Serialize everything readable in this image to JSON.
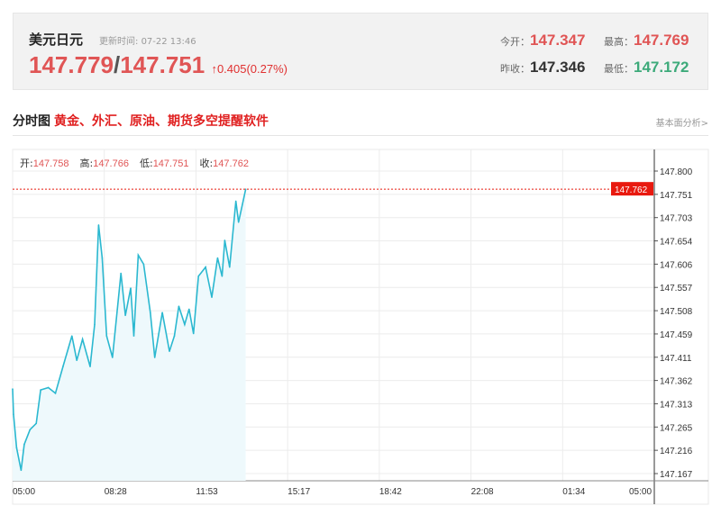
{
  "header": {
    "name": "美元日元",
    "update_label": "更新时间:",
    "update_time": "07-22 13:46",
    "ask": "147.779",
    "sep": "/",
    "bid": "147.751",
    "arrow": "↑",
    "change": "0.405(0.27%)",
    "open_label": "今开：",
    "open": "147.347",
    "high_label": "最高：",
    "high": "147.769",
    "prev_label": "昨收：",
    "prev": "147.346",
    "low_label": "最低：",
    "low": "147.172"
  },
  "section": {
    "title": "分时图",
    "promo": "黄金、外汇、原油、期货多空提醒软件",
    "more": "基本面分析>"
  },
  "ohlc": {
    "o_label": "开:",
    "o": "147.758",
    "h_label": "高:",
    "h": "147.766",
    "l_label": "低:",
    "l": "147.751",
    "c_label": "收:",
    "c": "147.762"
  },
  "colors": {
    "line": "#2bb8d0",
    "fill": "#eef9fc",
    "up": "#e05555",
    "down": "#3daa7a",
    "current": "#e8190f"
  },
  "chart_data": {
    "type": "area",
    "ylim": [
      147.167,
      147.8
    ],
    "yticks": [
      "147.800",
      "147.751",
      "147.703",
      "147.654",
      "147.606",
      "147.557",
      "147.508",
      "147.459",
      "147.411",
      "147.362",
      "147.313",
      "147.265",
      "147.216",
      "147.167"
    ],
    "xticks": [
      "05:00",
      "08:28",
      "11:53",
      "15:17",
      "18:42",
      "22:08",
      "01:34",
      "05:00"
    ],
    "current": "147.762",
    "grid": true,
    "x": [
      "05:00",
      "05:02",
      "05:09",
      "05:19",
      "05:26",
      "05:39",
      "05:53",
      "06:03",
      "06:20",
      "06:36",
      "06:53",
      "07:13",
      "07:24",
      "07:37",
      "07:54",
      "08:04",
      "08:13",
      "08:21",
      "08:31",
      "08:44",
      "08:55",
      "09:03",
      "09:13",
      "09:25",
      "09:32",
      "09:42",
      "09:54",
      "10:09",
      "10:19",
      "10:36",
      "10:52",
      "11:03",
      "11:13",
      "11:26",
      "11:36",
      "11:46",
      "11:57",
      "12:13",
      "12:27",
      "12:40",
      "12:50",
      "12:56",
      "13:07",
      "13:21",
      "13:27",
      "13:43"
    ],
    "y": [
      147.344,
      147.291,
      147.221,
      147.174,
      147.228,
      147.259,
      147.272,
      147.342,
      147.347,
      147.335,
      147.391,
      147.455,
      147.404,
      147.448,
      147.391,
      147.479,
      147.687,
      147.618,
      147.455,
      147.41,
      147.511,
      147.586,
      147.498,
      147.555,
      147.455,
      147.624,
      147.605,
      147.504,
      147.41,
      147.504,
      147.423,
      147.455,
      147.517,
      147.479,
      147.511,
      147.46,
      147.58,
      147.599,
      147.536,
      147.618,
      147.58,
      147.655,
      147.599,
      147.737,
      147.693,
      147.762
    ]
  }
}
